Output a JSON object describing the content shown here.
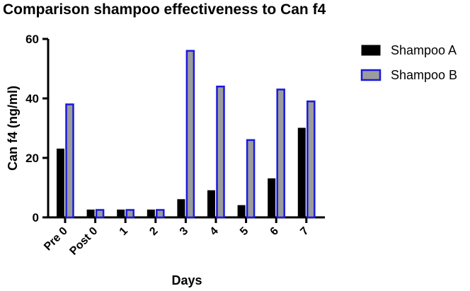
{
  "chart_data": {
    "type": "bar",
    "title": "Comparison shampoo effectiveness to Can f4",
    "xlabel": "Days",
    "ylabel": "Can f4 (ng/ml)",
    "categories": [
      "Pre 0",
      "Post 0",
      "1",
      "2",
      "3",
      "4",
      "5",
      "6",
      "7"
    ],
    "ylim": [
      0,
      60
    ],
    "yticks": [
      "0",
      "20",
      "40",
      "60"
    ],
    "series": [
      {
        "name": "Shampoo A",
        "values": [
          23,
          2.5,
          2.5,
          2.5,
          6,
          9,
          4,
          13,
          30
        ],
        "fill": "#000000",
        "stroke": "#000000"
      },
      {
        "name": "Shampoo B",
        "values": [
          38,
          2.5,
          2.5,
          2.5,
          56,
          44,
          26,
          43,
          39
        ],
        "fill": "#9c9c9c",
        "stroke": "#1a1adc"
      }
    ],
    "legend_position": "right",
    "grid": false
  }
}
